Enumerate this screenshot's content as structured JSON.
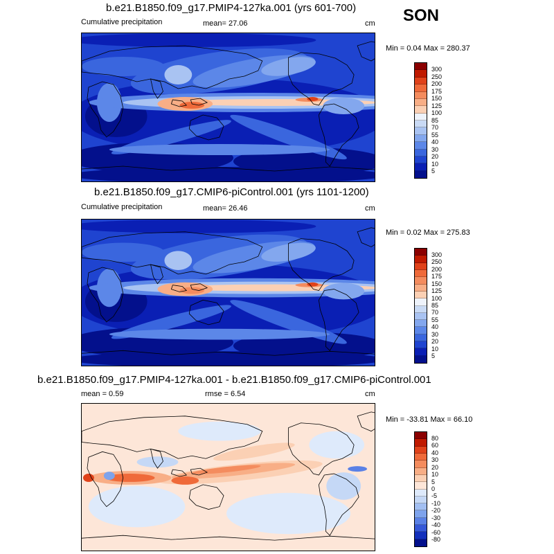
{
  "season": "SON",
  "panels": [
    {
      "title": "b.e21.B1850.f09_g17.PMIP4-127ka.001 (yrs 601-700)",
      "left_label": "Cumulative precipitation",
      "mean_label": "mean=  27.06",
      "unit": "cm",
      "minmax": "Min =   0.04 Max = 280.37"
    },
    {
      "title": "b.e21.B1850.f09_g17.CMIP6-piControl.001 (yrs 1101-1200)",
      "left_label": "Cumulative precipitation",
      "mean_label": "mean=  26.46",
      "unit": "cm",
      "minmax": "Min =   0.02 Max = 275.83"
    },
    {
      "title": "b.e21.B1850.f09_g17.PMIP4-127ka.001 - b.e21.B1850.f09_g17.CMIP6-piControl.001",
      "left_label": "mean =   0.59",
      "mean_label": "rmse =   6.54",
      "unit": "cm",
      "minmax": "Min = -33.81 Max =  66.10"
    }
  ],
  "chart_data": [
    {
      "type": "heatmap",
      "title": "b.e21.B1850.f09_g17.PMIP4-127ka.001 (yrs 601-700)",
      "variable": "Cumulative precipitation",
      "unit": "cm",
      "mean": 27.06,
      "min": 0.04,
      "max": 280.37,
      "colorbar": {
        "levels": [
          300,
          250,
          200,
          175,
          150,
          125,
          100,
          85,
          70,
          55,
          40,
          30,
          20,
          10,
          5
        ],
        "colors": [
          "#8b0000",
          "#c01a00",
          "#e0421a",
          "#ef6a3a",
          "#f48c5e",
          "#f8ae86",
          "#fbd0b4",
          "#eef3fb",
          "#c9daf5",
          "#a9c3f2",
          "#83a7ee",
          "#5c87e8",
          "#3a66de",
          "#1f44d0",
          "#0a1fb4",
          "#03108c"
        ]
      }
    },
    {
      "type": "heatmap",
      "title": "b.e21.B1850.f09_g17.CMIP6-piControl.001 (yrs 1101-1200)",
      "variable": "Cumulative precipitation",
      "unit": "cm",
      "mean": 26.46,
      "min": 0.02,
      "max": 275.83,
      "colorbar": {
        "levels": [
          300,
          250,
          200,
          175,
          150,
          125,
          100,
          85,
          70,
          55,
          40,
          30,
          20,
          10,
          5
        ],
        "colors": [
          "#8b0000",
          "#c01a00",
          "#e0421a",
          "#ef6a3a",
          "#f48c5e",
          "#f8ae86",
          "#fbd0b4",
          "#eef3fb",
          "#c9daf5",
          "#a9c3f2",
          "#83a7ee",
          "#5c87e8",
          "#3a66de",
          "#1f44d0",
          "#0a1fb4",
          "#03108c"
        ]
      }
    },
    {
      "type": "heatmap",
      "title": "b.e21.B1850.f09_g17.PMIP4-127ka.001 - b.e21.B1850.f09_g17.CMIP6-piControl.001",
      "unit": "cm",
      "mean": 0.59,
      "rmse": 6.54,
      "min": -33.81,
      "max": 66.1,
      "colorbar": {
        "levels": [
          80,
          60,
          40,
          30,
          20,
          10,
          5,
          0,
          -5,
          -10,
          -20,
          -30,
          -40,
          -60,
          -80
        ],
        "colors": [
          "#8b0000",
          "#c01a00",
          "#e0421a",
          "#ef6a3a",
          "#f48c5e",
          "#f8ae86",
          "#fbd0b4",
          "#fde6d8",
          "#deeafb",
          "#c5d8f6",
          "#a2bff2",
          "#7ea3ec",
          "#5a81e6",
          "#3558d8",
          "#1330bc",
          "#03108c"
        ]
      }
    }
  ]
}
